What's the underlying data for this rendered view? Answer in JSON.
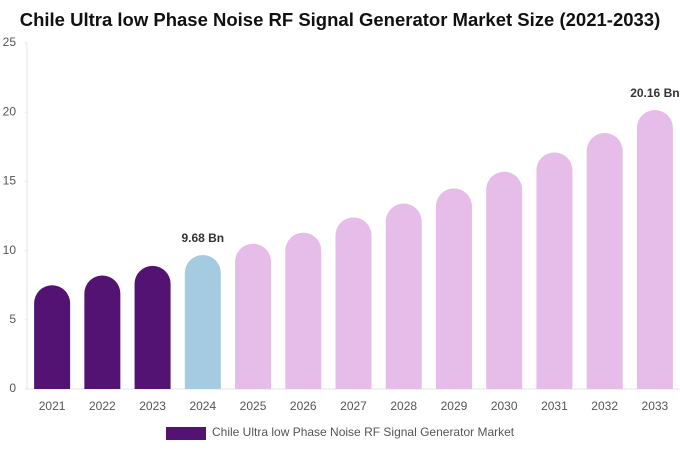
{
  "chart_data": {
    "type": "bar",
    "title": "Chile Ultra low Phase Noise RF Signal Generator Market Size (2021-2033)",
    "categories": [
      "2021",
      "2022",
      "2023",
      "2024",
      "2025",
      "2026",
      "2027",
      "2028",
      "2029",
      "2030",
      "2031",
      "2032",
      "2033"
    ],
    "series": [
      {
        "name": "Chile Ultra low Phase Noise RF Signal Generator Market",
        "color": "#521373",
        "values": [
          7.5,
          8.2,
          8.9,
          9.68,
          10.5,
          11.3,
          12.4,
          13.4,
          14.5,
          15.7,
          17.1,
          18.5,
          20.16
        ],
        "value_labels": [
          null,
          null,
          null,
          "9.68 Bn",
          null,
          null,
          null,
          null,
          null,
          null,
          null,
          null,
          "20.16 Bn"
        ],
        "colors": [
          "#521373",
          "#521373",
          "#521373",
          "#a5cbe0",
          "#e6bde9",
          "#e6bde9",
          "#e6bde9",
          "#e6bde9",
          "#e6bde9",
          "#e6bde9",
          "#e6bde9",
          "#e6bde9",
          "#e6bde9"
        ]
      }
    ],
    "ylim": [
      0,
      25
    ],
    "yticks": [
      0,
      5,
      10,
      15,
      20,
      25
    ],
    "grid": false
  }
}
